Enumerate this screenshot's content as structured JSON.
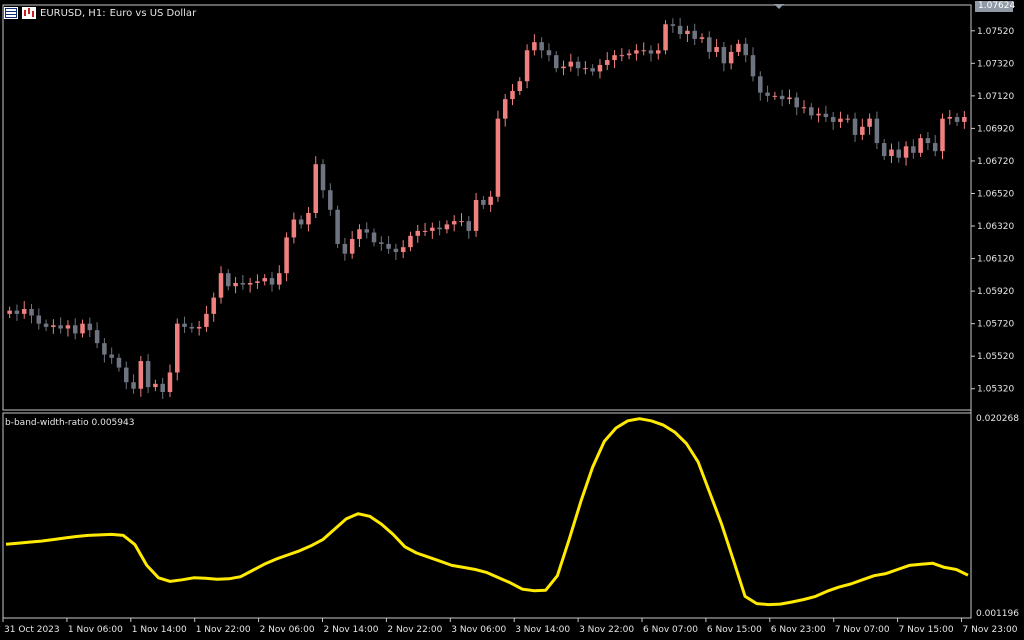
{
  "header": {
    "symbol_label": "EURUSD, H1:",
    "description": "Euro vs US Dollar",
    "flag_icon": "euro-us-flag-icon",
    "chart_icon": "bar-chart-icon"
  },
  "price_tag": "1.07624",
  "indicator": {
    "label": "b-band-width-ratio 0.005943",
    "axis_max": "0.020268",
    "axis_min": "0.001196",
    "color": "#ffea00"
  },
  "price_axis_labels": [
    "1.07520",
    "1.07320",
    "1.07120",
    "1.06920",
    "1.06720",
    "1.06520",
    "1.06320",
    "1.06120",
    "1.05920",
    "1.05720",
    "1.05520",
    "1.05320"
  ],
  "time_axis_labels": [
    "31 Oct 2023",
    "1 Nov 06:00",
    "1 Nov 14:00",
    "1 Nov 22:00",
    "2 Nov 06:00",
    "2 Nov 14:00",
    "2 Nov 22:00",
    "3 Nov 06:00",
    "3 Nov 14:00",
    "3 Nov 22:00",
    "6 Nov 07:00",
    "6 Nov 15:00",
    "6 Nov 23:00",
    "7 Nov 07:00",
    "7 Nov 15:00",
    "7 Nov 23:00"
  ],
  "colors": {
    "bull": "#f08080",
    "bear": "#6e7580",
    "indicator": "#ffea00",
    "axis": "#c8c8c8",
    "text": "#e6e6e6"
  },
  "chart_data": {
    "type": "candlestick",
    "ylim": [
      1.0522,
      1.0766
    ],
    "closes": [
      1.058,
      1.0578,
      1.0581,
      1.0577,
      1.0572,
      1.057,
      1.0571,
      1.0569,
      1.0571,
      1.0566,
      1.0572,
      1.0568,
      1.056,
      1.0553,
      1.0551,
      1.0545,
      1.0536,
      1.0532,
      1.0549,
      1.0533,
      1.0535,
      1.053,
      1.0542,
      1.0572,
      1.057,
      1.0569,
      1.057,
      1.0578,
      1.0588,
      1.0603,
      1.0595,
      1.0597,
      1.0596,
      1.0597,
      1.0598,
      1.06,
      1.0596,
      1.0603,
      1.0625,
      1.0636,
      1.0633,
      1.064,
      1.067,
      1.0654,
      1.0642,
      1.0621,
      1.0615,
      1.0624,
      1.063,
      1.0628,
      1.0622,
      1.0621,
      1.0618,
      1.0616,
      1.0619,
      1.0626,
      1.0629,
      1.0629,
      1.0631,
      1.063,
      1.0633,
      1.0635,
      1.0635,
      1.0629,
      1.0648,
      1.0645,
      1.065,
      1.0698,
      1.071,
      1.0715,
      1.0721,
      1.074,
      1.0745,
      1.074,
      1.0737,
      1.0729,
      1.073,
      1.0733,
      1.0729,
      1.0729,
      1.0727,
      1.0731,
      1.0734,
      1.0737,
      1.0737,
      1.0738,
      1.074,
      1.074,
      1.0738,
      1.074,
      1.0756,
      1.0755,
      1.075,
      1.0752,
      1.0747,
      1.0748,
      1.0739,
      1.0742,
      1.0732,
      1.0739,
      1.0744,
      1.0737,
      1.0724,
      1.0714,
      1.0712,
      1.0712,
      1.071,
      1.0711,
      1.0705,
      1.0705,
      1.07,
      1.0701,
      1.0699,
      1.0696,
      1.0698,
      1.0698,
      1.0688,
      1.0693,
      1.0698,
      1.0683,
      1.0675,
      1.0679,
      1.0674,
      1.0681,
      1.0677,
      1.0686,
      1.0683,
      1.0678,
      1.0698,
      1.0699,
      1.0696,
      1.0699
    ],
    "indicator_values": [
      0.00805,
      0.00815,
      0.00825,
      0.00835,
      0.0085,
      0.00865,
      0.0088,
      0.0089,
      0.00895,
      0.009,
      0.0089,
      0.008,
      0.006,
      0.0048,
      0.00445,
      0.0046,
      0.0048,
      0.00475,
      0.00465,
      0.0047,
      0.0049,
      0.0055,
      0.0061,
      0.0066,
      0.007,
      0.0074,
      0.0079,
      0.0085,
      0.0095,
      0.0105,
      0.011,
      0.01075,
      0.01,
      0.009,
      0.0078,
      0.0072,
      0.0068,
      0.0064,
      0.006,
      0.0058,
      0.0056,
      0.0053,
      0.0048,
      0.0043,
      0.0037,
      0.00355,
      0.0036,
      0.005,
      0.0085,
      0.0122,
      0.0155,
      0.018,
      0.0193,
      0.02,
      0.0202,
      0.02,
      0.0196,
      0.0189,
      0.0178,
      0.016,
      0.013,
      0.01,
      0.0065,
      0.003,
      0.0023,
      0.0022,
      0.00225,
      0.00245,
      0.0027,
      0.003,
      0.0035,
      0.0039,
      0.0042,
      0.0046,
      0.005,
      0.0052,
      0.0056,
      0.006,
      0.0061,
      0.0062,
      0.0058,
      0.0056,
      0.00505
    ]
  }
}
